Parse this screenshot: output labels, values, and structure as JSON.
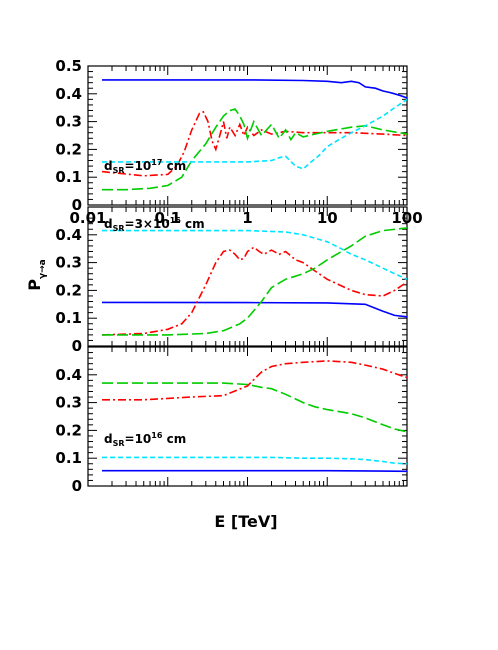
{
  "figure": {
    "xlabel": "E [TeV]",
    "ylabel": "P",
    "ylabel_sub": "γ→a"
  },
  "chart_data": [
    {
      "type": "line",
      "panel": "top",
      "annotation": {
        "base": "d",
        "sub": "SR",
        "text": "=10",
        "sup": "17",
        "unit": " cm"
      },
      "xscale": "log",
      "xlim": [
        0.01,
        100
      ],
      "ylim": [
        0,
        0.5
      ],
      "xticks": [
        0.01,
        0.1,
        1,
        10,
        100
      ],
      "xticklabels": [
        "0.01",
        "0.1",
        "1",
        "10",
        "100"
      ],
      "yticks": [
        0,
        0.1,
        0.2,
        0.3,
        0.4,
        0.5
      ],
      "yticklabels": [
        "0",
        "0.1",
        "0.2",
        "0.3",
        "0.4",
        "0.5"
      ],
      "series": [
        {
          "color": "#0000ff",
          "style": "solid",
          "x": [
            0.015,
            0.1,
            1,
            5,
            10,
            15,
            20,
            25,
            30,
            40,
            50,
            60,
            70,
            80,
            90,
            100
          ],
          "y": [
            0.45,
            0.45,
            0.45,
            0.448,
            0.445,
            0.44,
            0.445,
            0.44,
            0.425,
            0.42,
            0.41,
            0.405,
            0.4,
            0.395,
            0.39,
            0.385
          ]
        },
        {
          "color": "#ff0000",
          "style": "dashdot",
          "x": [
            0.015,
            0.05,
            0.1,
            0.13,
            0.16,
            0.2,
            0.25,
            0.28,
            0.32,
            0.36,
            0.4,
            0.45,
            0.5,
            0.55,
            0.6,
            0.7,
            0.8,
            0.9,
            1,
            1.2,
            1.5,
            2,
            3,
            5,
            10,
            20,
            50,
            100
          ],
          "y": [
            0.12,
            0.105,
            0.11,
            0.14,
            0.19,
            0.27,
            0.33,
            0.335,
            0.3,
            0.23,
            0.2,
            0.25,
            0.3,
            0.24,
            0.28,
            0.25,
            0.29,
            0.25,
            0.28,
            0.25,
            0.27,
            0.255,
            0.265,
            0.26,
            0.26,
            0.26,
            0.255,
            0.25
          ]
        },
        {
          "color": "#00cc00",
          "style": "longdash",
          "x": [
            0.015,
            0.03,
            0.06,
            0.1,
            0.15,
            0.2,
            0.3,
            0.4,
            0.5,
            0.6,
            0.7,
            0.8,
            0.9,
            1,
            1.2,
            1.5,
            2,
            2.5,
            3,
            3.5,
            4,
            5,
            7,
            10,
            20,
            30,
            50,
            100
          ],
          "y": [
            0.055,
            0.055,
            0.06,
            0.07,
            0.1,
            0.16,
            0.22,
            0.28,
            0.32,
            0.34,
            0.345,
            0.32,
            0.29,
            0.24,
            0.3,
            0.25,
            0.29,
            0.24,
            0.27,
            0.235,
            0.26,
            0.245,
            0.255,
            0.265,
            0.28,
            0.285,
            0.27,
            0.255
          ]
        },
        {
          "color": "#00e5ff",
          "style": "shortdash",
          "x": [
            0.015,
            0.1,
            0.5,
            1,
            2,
            2.5,
            3,
            4,
            5,
            6,
            8,
            10,
            15,
            20,
            30,
            50,
            70,
            100
          ],
          "y": [
            0.155,
            0.155,
            0.155,
            0.155,
            0.16,
            0.17,
            0.175,
            0.14,
            0.13,
            0.15,
            0.18,
            0.21,
            0.24,
            0.26,
            0.285,
            0.32,
            0.35,
            0.38
          ]
        }
      ]
    },
    {
      "type": "line",
      "panel": "middle",
      "annotation": {
        "base": "d",
        "sub": "SR",
        "text": "=3×10",
        "sup": "16",
        "unit": " cm"
      },
      "xscale": "log",
      "xlim": [
        0.01,
        100
      ],
      "ylim": [
        0,
        0.5
      ],
      "yticks": [
        0,
        0.1,
        0.2,
        0.3,
        0.4
      ],
      "yticklabels": [
        "0",
        "0.1",
        "0.2",
        "0.3",
        "0.4"
      ],
      "series": [
        {
          "color": "#0000ff",
          "style": "solid",
          "x": [
            0.015,
            1,
            10,
            30,
            50,
            70,
            100
          ],
          "y": [
            0.157,
            0.156,
            0.155,
            0.15,
            0.125,
            0.11,
            0.105
          ]
        },
        {
          "color": "#ff0000",
          "style": "dashdot",
          "x": [
            0.015,
            0.05,
            0.1,
            0.15,
            0.2,
            0.3,
            0.4,
            0.5,
            0.6,
            0.7,
            0.8,
            0.9,
            1,
            1.2,
            1.4,
            1.6,
            2,
            2.5,
            3,
            4,
            5,
            7,
            10,
            20,
            30,
            50,
            70,
            100
          ],
          "y": [
            0.04,
            0.045,
            0.06,
            0.08,
            0.12,
            0.22,
            0.3,
            0.34,
            0.345,
            0.33,
            0.31,
            0.315,
            0.34,
            0.355,
            0.34,
            0.33,
            0.345,
            0.33,
            0.34,
            0.31,
            0.3,
            0.27,
            0.24,
            0.2,
            0.185,
            0.18,
            0.2,
            0.23
          ]
        },
        {
          "color": "#00cc00",
          "style": "longdash",
          "x": [
            0.015,
            0.1,
            0.3,
            0.5,
            0.8,
            1,
            1.5,
            2,
            3,
            5,
            7,
            10,
            20,
            30,
            50,
            100
          ],
          "y": [
            0.04,
            0.04,
            0.045,
            0.055,
            0.08,
            0.1,
            0.16,
            0.21,
            0.24,
            0.26,
            0.28,
            0.31,
            0.36,
            0.395,
            0.415,
            0.425
          ]
        },
        {
          "color": "#00e5ff",
          "style": "shortdash",
          "x": [
            0.015,
            0.1,
            1,
            3,
            5,
            10,
            15,
            20,
            30,
            50,
            70,
            100
          ],
          "y": [
            0.415,
            0.415,
            0.415,
            0.41,
            0.4,
            0.375,
            0.35,
            0.33,
            0.31,
            0.28,
            0.26,
            0.24
          ]
        }
      ]
    },
    {
      "type": "line",
      "panel": "bottom",
      "annotation": {
        "base": "d",
        "sub": "SR",
        "text": "=10",
        "sup": "16",
        "unit": " cm"
      },
      "xscale": "log",
      "xlim": [
        0.01,
        100
      ],
      "ylim": [
        0,
        0.5
      ],
      "yticks": [
        0,
        0.1,
        0.2,
        0.3,
        0.4
      ],
      "yticklabels": [
        "0",
        "0.1",
        "0.2",
        "0.3",
        "0.4"
      ],
      "series": [
        {
          "color": "#0000ff",
          "style": "solid",
          "x": [
            0.015,
            1,
            10,
            100
          ],
          "y": [
            0.055,
            0.055,
            0.055,
            0.053
          ]
        },
        {
          "color": "#ff0000",
          "style": "dashdot",
          "x": [
            0.015,
            0.05,
            0.1,
            0.2,
            0.5,
            1,
            1.5,
            2,
            3,
            5,
            10,
            20,
            30,
            50,
            70,
            100
          ],
          "y": [
            0.31,
            0.31,
            0.315,
            0.32,
            0.325,
            0.36,
            0.41,
            0.43,
            0.44,
            0.445,
            0.45,
            0.445,
            0.435,
            0.42,
            0.405,
            0.39
          ]
        },
        {
          "color": "#00cc00",
          "style": "longdash",
          "x": [
            0.015,
            0.1,
            0.5,
            1,
            1.5,
            2,
            3,
            5,
            7,
            10,
            20,
            30,
            50,
            70,
            100
          ],
          "y": [
            0.37,
            0.37,
            0.37,
            0.365,
            0.355,
            0.35,
            0.33,
            0.3,
            0.285,
            0.275,
            0.26,
            0.245,
            0.22,
            0.205,
            0.195
          ]
        },
        {
          "color": "#00e5ff",
          "style": "shortdash",
          "x": [
            0.015,
            0.5,
            2,
            5,
            10,
            20,
            30,
            50,
            70,
            100
          ],
          "y": [
            0.103,
            0.103,
            0.103,
            0.1,
            0.1,
            0.098,
            0.095,
            0.088,
            0.082,
            0.08
          ]
        }
      ]
    }
  ]
}
